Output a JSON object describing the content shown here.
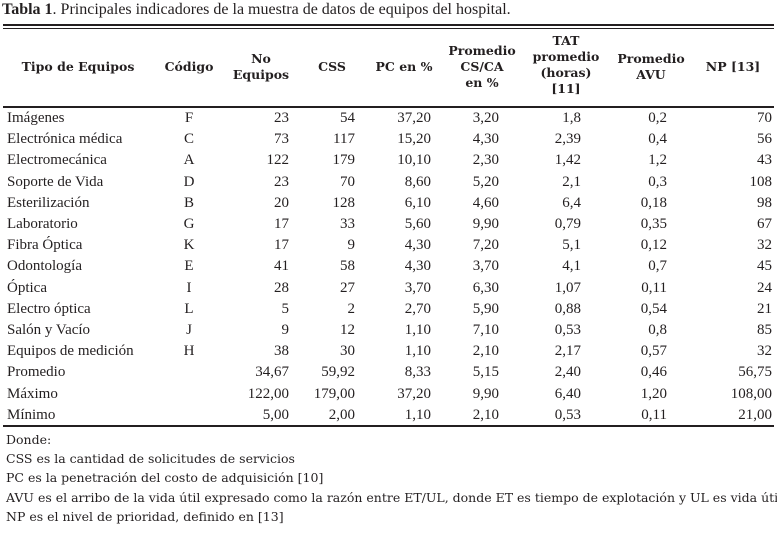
{
  "caption": {
    "label": "Tabla 1",
    "text": ". Principales indicadores de la muestra de datos de equipos del hospital."
  },
  "columns": [
    {
      "lines": [
        "Tipo de Equipos"
      ]
    },
    {
      "lines": [
        "Código"
      ]
    },
    {
      "lines": [
        "No",
        "Equipos"
      ]
    },
    {
      "lines": [
        "CSS"
      ]
    },
    {
      "lines": [
        "PC en %"
      ]
    },
    {
      "lines": [
        "Promedio",
        "CS/CA",
        "en %"
      ]
    },
    {
      "lines": [
        "TAT",
        "promedio",
        "(horas)",
        "[11]"
      ]
    },
    {
      "lines": [
        "Promedio",
        "AVU"
      ]
    },
    {
      "lines": [
        "NP [13]"
      ]
    }
  ],
  "rows": [
    {
      "tipo": "Imágenes",
      "codigo": "F",
      "equipos": "23",
      "css": "54",
      "pc": "37,20",
      "cs_ca": "3,20",
      "tat": "1,8",
      "avu": "0,2",
      "np": "70"
    },
    {
      "tipo": "Electrónica médica",
      "codigo": "C",
      "equipos": "73",
      "css": "117",
      "pc": "15,20",
      "cs_ca": "4,30",
      "tat": "2,39",
      "avu": "0,4",
      "np": "56"
    },
    {
      "tipo": "Electromecánica",
      "codigo": "A",
      "equipos": "122",
      "css": "179",
      "pc": "10,10",
      "cs_ca": "2,30",
      "tat": "1,42",
      "avu": "1,2",
      "np": "43"
    },
    {
      "tipo": "Soporte de Vida",
      "codigo": "D",
      "equipos": "23",
      "css": "70",
      "pc": "8,60",
      "cs_ca": "5,20",
      "tat": "2,1",
      "avu": "0,3",
      "np": "108"
    },
    {
      "tipo": "Esterilización",
      "codigo": "B",
      "equipos": "20",
      "css": "128",
      "pc": "6,10",
      "cs_ca": "4,60",
      "tat": "6,4",
      "avu": "0,18",
      "np": "98"
    },
    {
      "tipo": "Laboratorio",
      "codigo": "G",
      "equipos": "17",
      "css": "33",
      "pc": "5,60",
      "cs_ca": "9,90",
      "tat": "0,79",
      "avu": "0,35",
      "np": "67"
    },
    {
      "tipo": "Fibra Óptica",
      "codigo": "K",
      "equipos": "17",
      "css": "9",
      "pc": "4,30",
      "cs_ca": "7,20",
      "tat": "5,1",
      "avu": "0,12",
      "np": "32"
    },
    {
      "tipo": "Odontología",
      "codigo": "E",
      "equipos": "41",
      "css": "58",
      "pc": "4,30",
      "cs_ca": "3,70",
      "tat": "4,1",
      "avu": "0,7",
      "np": "45"
    },
    {
      "tipo": "Óptica",
      "codigo": "I",
      "equipos": "28",
      "css": "27",
      "pc": "3,70",
      "cs_ca": "6,30",
      "tat": "1,07",
      "avu": "0,11",
      "np": "24"
    },
    {
      "tipo": "Electro óptica",
      "codigo": "L",
      "equipos": "5",
      "css": "2",
      "pc": "2,70",
      "cs_ca": "5,90",
      "tat": "0,88",
      "avu": "0,54",
      "np": "21"
    },
    {
      "tipo": "Salón y Vacío",
      "codigo": "J",
      "equipos": "9",
      "css": "12",
      "pc": "1,10",
      "cs_ca": "7,10",
      "tat": "0,53",
      "avu": "0,8",
      "np": "85"
    },
    {
      "tipo": "Equipos de medición",
      "codigo": "H",
      "equipos": "38",
      "css": "30",
      "pc": "1,10",
      "cs_ca": "2,10",
      "tat": "2,17",
      "avu": "0,57",
      "np": "32"
    },
    {
      "tipo": "Promedio",
      "codigo": "",
      "equipos": "34,67",
      "css": "59,92",
      "pc": "8,33",
      "cs_ca": "5,15",
      "tat": "2,40",
      "avu": "0,46",
      "np": "56,75"
    },
    {
      "tipo": "Máximo",
      "codigo": "",
      "equipos": "122,00",
      "css": "179,00",
      "pc": "37,20",
      "cs_ca": "9,90",
      "tat": "6,40",
      "avu": "1,20",
      "np": "108,00"
    },
    {
      "tipo": "Mínimo",
      "codigo": "",
      "equipos": "5,00",
      "css": "2,00",
      "pc": "1,10",
      "cs_ca": "2,10",
      "tat": "0,53",
      "avu": "0,11",
      "np": "21,00"
    }
  ],
  "notes": [
    "Donde:",
    "CSS es la cantidad de solicitudes de servicios",
    "PC es la penetración del costo de adquisición [10]",
    "AVU es el arribo de la vida útil expresado como la razón entre ET/UL, donde ET es tiempo de explotación y UL es vida útil",
    "NP es el nivel de prioridad, definido en [13]"
  ]
}
